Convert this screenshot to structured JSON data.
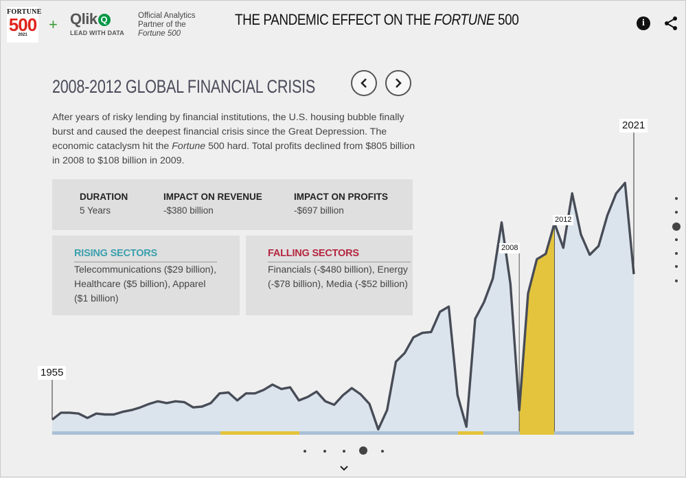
{
  "header": {
    "fortune_logo": {
      "top": "FORTUNE",
      "number": "500",
      "year": "2021"
    },
    "plus": "+",
    "qlik_logo": {
      "word": "Qlik",
      "mark": "Q",
      "tagline": "LEAD WITH DATA"
    },
    "partner_lines": [
      "Official Analytics",
      "Partner of the",
      "Fortune 500"
    ],
    "title_prefix": "THE PANDEMIC EFFECT ON THE ",
    "title_italic": "FORTUNE",
    "title_suffix": " 500",
    "info_icon": "info-icon",
    "share_icon": "share-icon"
  },
  "section": {
    "title": "2008-2012 GLOBAL FINANCIAL CRISIS",
    "prev_icon": "chevron-left-icon",
    "next_icon": "chevron-right-icon",
    "description_before": "After years of risky lending by financial institutions, the U.S. housing bubble finally burst and caused the deepest financial crisis since the Great Depression. The economic cataclysm hit the ",
    "description_italic": "Fortune",
    "description_after": " 500 hard. Total profits declined from $805 billion in 2008 to $108 billion in 2009."
  },
  "stats": [
    {
      "label": "DURATION",
      "value": "5 Years"
    },
    {
      "label": "IMPACT ON REVENUE",
      "value": "-$380 billion"
    },
    {
      "label": "IMPACT ON PROFITS",
      "value": "-$697 billion"
    }
  ],
  "rising": {
    "label": "RISING SECTORS",
    "text": "Telecommunications ($29 billion), Healthcare ($5 billion), Apparel ($1 billion)",
    "color": "#3aa0ad"
  },
  "falling": {
    "label": "FALLING SECTORS",
    "text": "Financials (-$480 billion), Energy (-$78 billion), Media (-$52 billion)",
    "color": "#b5253f"
  },
  "chart_data": {
    "type": "area",
    "series": [
      {
        "values": [
          2,
          10,
          10,
          9,
          4,
          9,
          8,
          8,
          11,
          13,
          16,
          20,
          23,
          21,
          23,
          22,
          16,
          17,
          21,
          32,
          33,
          24,
          32,
          32,
          36,
          42,
          37,
          39,
          24,
          28,
          34,
          23,
          19,
          30,
          38,
          31,
          20,
          -9,
          13,
          68,
          78,
          96,
          101,
          102,
          125,
          131,
          30,
          -6,
          117,
          136,
          163,
          227,
          157,
          13,
          146,
          185,
          191,
          226,
          198,
          260,
          213,
          190,
          200,
          235,
          260,
          272,
          168
        ]
      }
    ],
    "start_label": "1955",
    "end_label": "2021",
    "period_labels": [
      "2008",
      "2012"
    ],
    "highlighted_periods": [
      {
        "start": 2008,
        "end": 2012
      }
    ],
    "colors": {
      "area": "#dbe4ec",
      "line": "#474c57",
      "highlight": "#e3c43c",
      "baseline": "#a8c0d6",
      "baseline_highlight": "#e3c43c"
    }
  },
  "pagination": {
    "vertical_count": 7,
    "vertical_active": 2,
    "horizontal_count": 5,
    "horizontal_active": 3,
    "down_icon": "chevron-down-icon"
  }
}
